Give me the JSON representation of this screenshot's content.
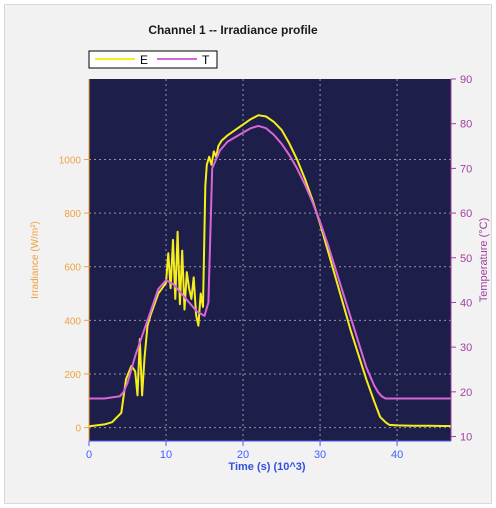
{
  "chart_data": {
    "type": "line",
    "title": "Channel 1 -- Irradiance profile",
    "xlabel": "Time (s) (10^3)",
    "ylabel_left": "Irradiance (W/m²)",
    "ylabel_right": "Temperature (°C)",
    "xlim": [
      0,
      47
    ],
    "ylim_left": [
      -50,
      1300
    ],
    "ylim_right": [
      9,
      90
    ],
    "x_ticks": [
      "0",
      "10",
      "20",
      "30",
      "40"
    ],
    "y_left_ticks": [
      "0",
      "200",
      "400",
      "600",
      "800",
      "1000"
    ],
    "y_right_ticks": [
      "10",
      "20",
      "30",
      "40",
      "50",
      "60",
      "70",
      "80",
      "90"
    ],
    "grid": true,
    "legend_placement": "top-left",
    "colors": {
      "plot_bg": "#1e1e4a",
      "grid": "#c8c8c8",
      "series_E": "#f5ee1c",
      "series_T": "#d966d9",
      "left_axis": "#f0a040",
      "right_axis": "#a040a0",
      "bottom_axis": "#4060ff"
    },
    "series": [
      {
        "name": "E",
        "axis": "left",
        "x": [
          0,
          1,
          2,
          3,
          4.2,
          4.8,
          5.5,
          6,
          6.3,
          6.6,
          6.9,
          7.2,
          7.6,
          8,
          8.5,
          9,
          9.5,
          10,
          10.3,
          10.6,
          10.9,
          11.2,
          11.5,
          11.8,
          12.1,
          12.4,
          12.7,
          13,
          13.3,
          13.6,
          13.9,
          14.2,
          14.5,
          14.8,
          15.1,
          15.3,
          15.6,
          15.9,
          16.2,
          16.5,
          16.8,
          17.2,
          18,
          19,
          20,
          21,
          22,
          23,
          24,
          25,
          26,
          27,
          28,
          29,
          30,
          31,
          32,
          33,
          34,
          35,
          36,
          37,
          37.8,
          38.5,
          39,
          40,
          42,
          44,
          46,
          47
        ],
        "y": [
          5,
          8,
          12,
          20,
          55,
          180,
          230,
          210,
          120,
          330,
          120,
          260,
          380,
          420,
          460,
          500,
          520,
          540,
          650,
          520,
          700,
          480,
          730,
          460,
          660,
          440,
          580,
          520,
          480,
          560,
          420,
          380,
          500,
          450,
          900,
          980,
          1010,
          980,
          1030,
          1010,
          1050,
          1070,
          1090,
          1110,
          1130,
          1150,
          1165,
          1160,
          1140,
          1110,
          1060,
          1000,
          930,
          850,
          760,
          660,
          560,
          460,
          360,
          270,
          180,
          100,
          40,
          20,
          10,
          8,
          7,
          7,
          6,
          6
        ]
      },
      {
        "name": "T",
        "axis": "right",
        "x": [
          0,
          2,
          4,
          4.5,
          5,
          6,
          7,
          8,
          9,
          10,
          11,
          12,
          13,
          14,
          15,
          15.5,
          16,
          17,
          18,
          19,
          20,
          21,
          22,
          23,
          24,
          25,
          26,
          27,
          28,
          29,
          30,
          31,
          32,
          33,
          34,
          35,
          36,
          37,
          37.5,
          38,
          38.5,
          39,
          40,
          42,
          44,
          47
        ],
        "y": [
          18.5,
          18.5,
          19,
          20,
          22,
          28,
          33,
          38,
          43,
          45,
          44,
          42,
          40,
          38,
          37,
          40,
          70,
          74,
          76,
          77,
          78,
          79,
          79.5,
          79,
          77.5,
          75.5,
          73,
          70,
          66.5,
          62.5,
          58,
          53,
          47.5,
          42,
          36.5,
          31,
          25.5,
          21.5,
          20,
          19,
          18.5,
          18.5,
          18.5,
          18.5,
          18.5,
          18.5
        ]
      }
    ]
  }
}
